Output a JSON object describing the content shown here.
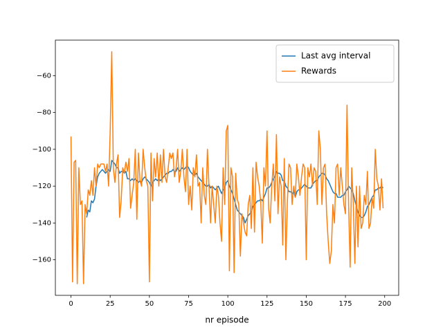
{
  "chart_data": {
    "type": "line",
    "xlabel": "nr episode",
    "x": [
      0,
      1,
      2,
      3,
      4,
      5,
      6,
      7,
      8,
      9,
      10,
      11,
      12,
      13,
      14,
      15,
      16,
      17,
      18,
      19,
      20,
      21,
      22,
      23,
      24,
      25,
      26,
      27,
      28,
      29,
      30,
      31,
      32,
      33,
      34,
      35,
      36,
      37,
      38,
      39,
      40,
      41,
      42,
      43,
      44,
      45,
      46,
      47,
      48,
      49,
      50,
      51,
      52,
      53,
      54,
      55,
      56,
      57,
      58,
      59,
      60,
      61,
      62,
      63,
      64,
      65,
      66,
      67,
      68,
      69,
      70,
      71,
      72,
      73,
      74,
      75,
      76,
      77,
      78,
      79,
      80,
      81,
      82,
      83,
      84,
      85,
      86,
      87,
      88,
      89,
      90,
      91,
      92,
      93,
      94,
      95,
      96,
      97,
      98,
      99,
      100,
      101,
      102,
      103,
      104,
      105,
      106,
      107,
      108,
      109,
      110,
      111,
      112,
      113,
      114,
      115,
      116,
      117,
      118,
      119,
      120,
      121,
      122,
      123,
      124,
      125,
      126,
      127,
      128,
      129,
      130,
      131,
      132,
      133,
      134,
      135,
      136,
      137,
      138,
      139,
      140,
      141,
      142,
      143,
      144,
      145,
      146,
      147,
      148,
      149,
      150,
      151,
      152,
      153,
      154,
      155,
      156,
      157,
      158,
      159,
      160,
      161,
      162,
      163,
      164,
      165,
      166,
      167,
      168,
      169,
      170,
      171,
      172,
      173,
      174,
      175,
      176,
      177,
      178,
      179,
      180,
      181,
      182,
      183,
      184,
      185,
      186,
      187,
      188,
      189,
      190,
      191,
      192,
      193,
      194,
      195,
      196,
      197,
      198,
      199
    ],
    "series": [
      {
        "name": "Last avg interval",
        "color": "#1f77b4",
        "values": [
          null,
          null,
          null,
          null,
          null,
          null,
          null,
          null,
          null,
          null,
          -137,
          -133,
          -134,
          -128,
          -129,
          -127,
          -120,
          -115,
          -113,
          -112,
          -111,
          -112,
          -113,
          -112,
          -111,
          -112,
          -106,
          -107,
          -108,
          -110,
          -110,
          -113,
          -112,
          -112,
          -113,
          -112,
          -116,
          -116,
          -117,
          -116,
          -117,
          -116,
          -117,
          -118,
          -117,
          -118,
          -116,
          -115,
          -116,
          -117,
          -118,
          -120,
          -118,
          -117,
          -116,
          -117,
          -116,
          -117,
          -116,
          -115,
          -114,
          -113,
          -113,
          -112,
          -112,
          -111,
          -112,
          -112,
          -110,
          -112,
          -111,
          -110,
          -111,
          -110,
          -109,
          -110,
          -112,
          -113,
          -114,
          -114,
          -113,
          -115,
          -116,
          -117,
          -118,
          -119,
          -120,
          -120,
          -119,
          -121,
          -120,
          -121,
          -122,
          -121,
          -120,
          -122,
          -124,
          -122,
          -121,
          -118,
          -117,
          -120,
          -122,
          -124,
          -127,
          -130,
          -133,
          -134,
          -135,
          -136,
          -137,
          -140,
          -138,
          -136,
          -135,
          -134,
          -131,
          -130,
          -129,
          -128,
          -128,
          -127,
          -128,
          -126,
          -124,
          -121,
          -121,
          -120,
          -118,
          -116,
          -115,
          -112,
          -113,
          -113,
          -114,
          -117,
          -117,
          -120,
          -121,
          -123,
          -123,
          -124,
          -123,
          -126,
          -123,
          -122,
          -122,
          -121,
          -120,
          -119,
          -120,
          -121,
          -121,
          -121,
          -119,
          -118,
          -117,
          -117,
          -115,
          -114,
          -113,
          -113,
          -114,
          -116,
          -117,
          -119,
          -121,
          -123,
          -124,
          -124,
          -126,
          -126,
          -126,
          -125,
          -125,
          -123,
          -122,
          -120,
          -121,
          -122,
          -124,
          -128,
          -131,
          -134,
          -136,
          -137,
          -137,
          -136,
          -134,
          -131,
          -130,
          -128,
          -126,
          -125,
          -122,
          -122,
          -121,
          -121,
          -120,
          -121
        ]
      },
      {
        "name": "Rewards",
        "color": "#ff7f0e",
        "values": [
          -93,
          -172,
          -107,
          -106,
          -173,
          -110,
          -130,
          -128,
          -173,
          -130,
          -135,
          -122,
          -125,
          -117,
          -125,
          -110,
          -120,
          -108,
          -110,
          -108,
          -108,
          -108,
          -112,
          -108,
          -120,
          -90,
          -47,
          -110,
          -118,
          -108,
          -103,
          -137,
          -128,
          -110,
          -113,
          -107,
          -112,
          -105,
          -132,
          -125,
          -118,
          -100,
          -138,
          -102,
          -117,
          -120,
          -100,
          -110,
          -117,
          -120,
          -172,
          -102,
          -128,
          -105,
          -115,
          -102,
          -120,
          -103,
          -118,
          -100,
          -115,
          -118,
          -110,
          -102,
          -105,
          -102,
          -115,
          -110,
          -100,
          -118,
          -112,
          -100,
          -115,
          -123,
          -100,
          -130,
          -120,
          -133,
          -110,
          -115,
          -103,
          -120,
          -118,
          -140,
          -110,
          -125,
          -130,
          -100,
          -120,
          -140,
          -120,
          -130,
          -140,
          -120,
          -125,
          -140,
          -150,
          -110,
          -130,
          -90,
          -87,
          -166,
          -110,
          -115,
          -167,
          -113,
          -127,
          -130,
          -158,
          -135,
          -140,
          -145,
          -147,
          -130,
          -125,
          -143,
          -110,
          -145,
          -107,
          -115,
          -120,
          -129,
          -151,
          -110,
          -120,
          -90,
          -132,
          -140,
          -120,
          -108,
          -128,
          -92,
          -135,
          -115,
          -120,
          -152,
          -105,
          -160,
          -128,
          -108,
          -110,
          -130,
          -120,
          -126,
          -108,
          -115,
          -125,
          -115,
          -108,
          -110,
          -160,
          -110,
          -115,
          -108,
          -120,
          -110,
          -112,
          -130,
          -90,
          -100,
          -130,
          -110,
          -108,
          -135,
          -150,
          -162,
          -155,
          -130,
          -140,
          -110,
          -108,
          -125,
          -110,
          -120,
          -130,
          -135,
          -76,
          -130,
          -164,
          -110,
          -130,
          -162,
          -120,
          -153,
          -120,
          -143,
          -140,
          -125,
          -130,
          -112,
          -143,
          -140,
          -126,
          -132,
          -100,
          -116,
          -120,
          -133,
          -116,
          -132
        ]
      }
    ],
    "xlim": [
      -9.95,
      208.95
    ],
    "ylim": [
      -179.3,
      -40.7
    ],
    "xticks": [
      0,
      25,
      50,
      75,
      100,
      125,
      150,
      175,
      200
    ],
    "yticks": [
      {
        "value": -160,
        "label": "−160"
      },
      {
        "value": -140,
        "label": "−140"
      },
      {
        "value": -120,
        "label": "−120"
      },
      {
        "value": -100,
        "label": "−100"
      },
      {
        "value": -80,
        "label": "−80"
      },
      {
        "value": -60,
        "label": "−60"
      }
    ],
    "legend": "upper right"
  }
}
